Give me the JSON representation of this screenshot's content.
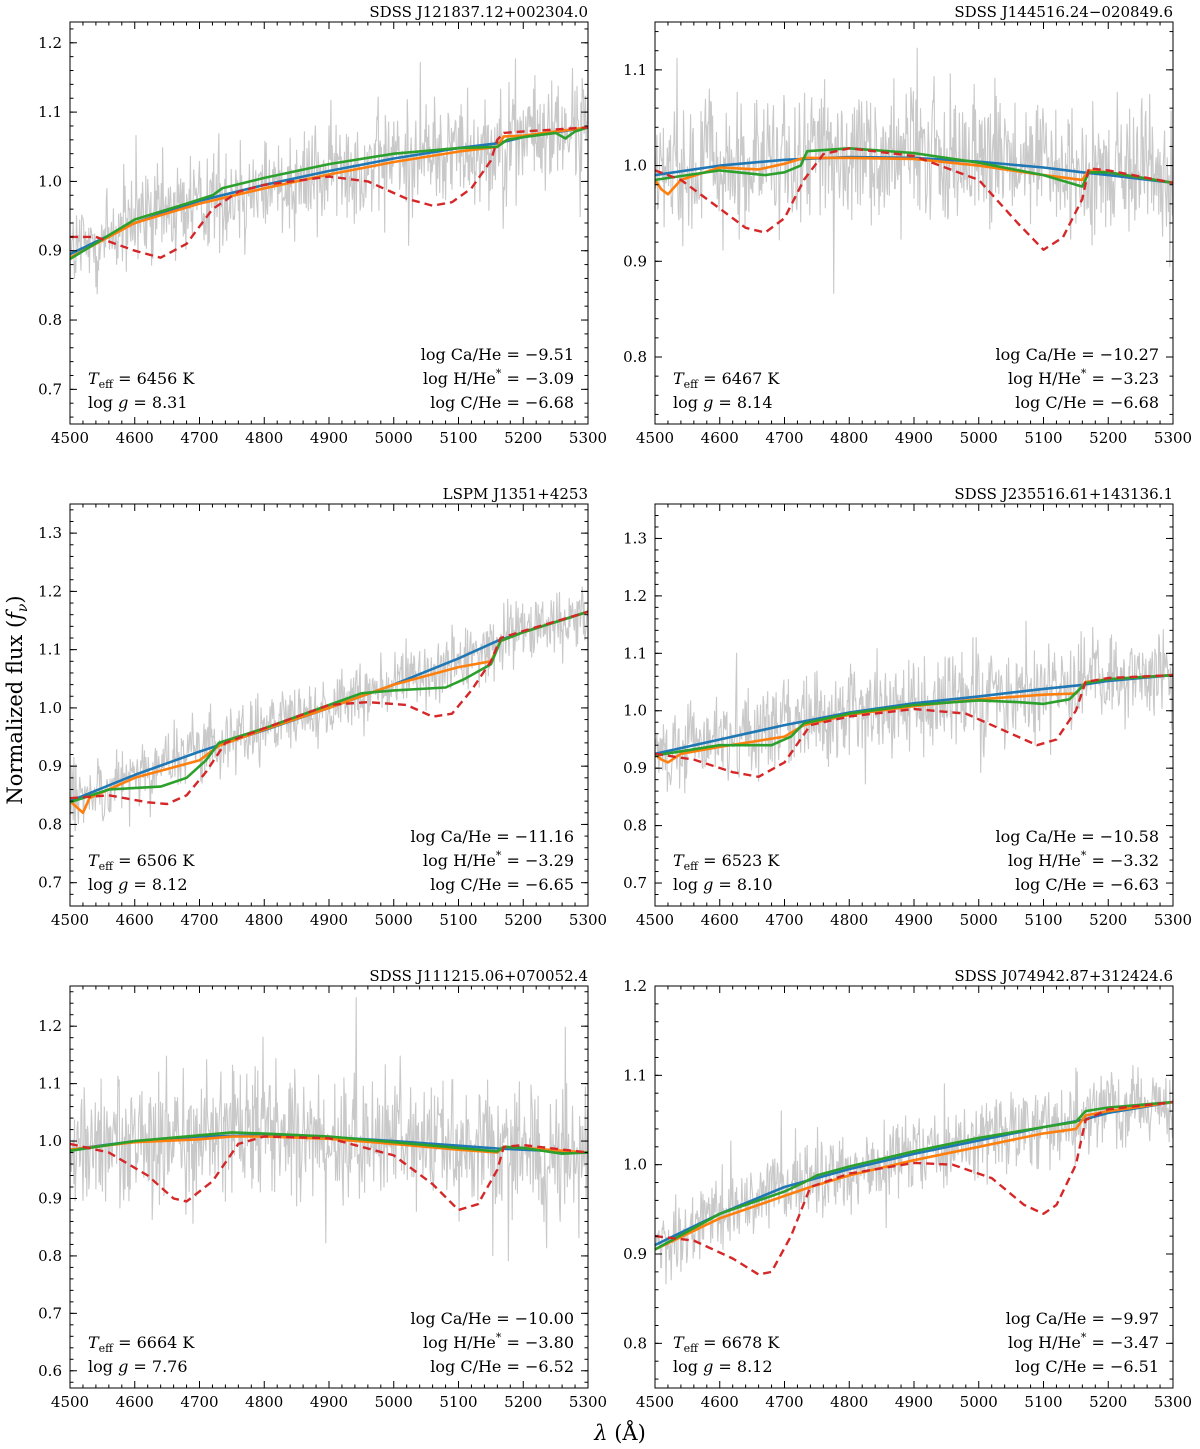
{
  "figure": {
    "ylabel": "Normalized flux (fν)",
    "xlabel": "λ (Å)",
    "series_colors": {
      "observed": "#c9c9c9",
      "model_blue": "#1f77b4",
      "model_orange": "#ff7f0e",
      "model_green": "#2ca02c",
      "model_red_dashed": "#d62728"
    }
  },
  "chart_data": [
    {
      "type": "line",
      "title": "SDSS J121837.12+002304.0",
      "xlim": [
        4500,
        5300
      ],
      "ylim": [
        0.65,
        1.23
      ],
      "xticks": [
        4500,
        4600,
        4700,
        4800,
        4900,
        5000,
        5100,
        5200,
        5300
      ],
      "yticks": [
        0.7,
        0.8,
        0.9,
        1.0,
        1.1,
        1.2
      ],
      "ytick_labels": [
        "0.7",
        "0.8",
        "0.9",
        "1.0",
        "1.1",
        "1.2"
      ],
      "annotations": {
        "teff": "T_eff = 6456 K",
        "logg": "log g = 8.31",
        "ca": "log Ca/He = −9.51",
        "h": "log H/He* = −3.09",
        "c": "log C/He = −6.68"
      },
      "observed_noise": 0.07,
      "series": [
        {
          "key": "blue",
          "x": [
            4500,
            4600,
            4700,
            4800,
            4900,
            5000,
            5100,
            5160,
            5200,
            5300
          ],
          "y": [
            0.895,
            0.94,
            0.972,
            0.995,
            1.015,
            1.033,
            1.048,
            1.055,
            1.064,
            1.078
          ]
        },
        {
          "key": "orange",
          "x": [
            4500,
            4600,
            4700,
            4800,
            4900,
            5000,
            5100,
            5160,
            5170,
            5200,
            5300
          ],
          "y": [
            0.89,
            0.94,
            0.968,
            0.99,
            1.01,
            1.028,
            1.043,
            1.05,
            1.065,
            1.066,
            1.078
          ]
        },
        {
          "key": "green",
          "x": [
            4500,
            4600,
            4680,
            4720,
            4735,
            4800,
            4900,
            5000,
            5100,
            5160,
            5175,
            5200,
            5250,
            5265,
            5280,
            5300
          ],
          "y": [
            0.888,
            0.945,
            0.968,
            0.98,
            0.99,
            1.005,
            1.025,
            1.04,
            1.048,
            1.05,
            1.06,
            1.064,
            1.07,
            1.062,
            1.072,
            1.078
          ]
        },
        {
          "key": "red",
          "x": [
            4500,
            4540,
            4600,
            4640,
            4680,
            4720,
            4760,
            4800,
            4900,
            4960,
            5020,
            5060,
            5090,
            5120,
            5150,
            5160,
            5170,
            5200,
            5300
          ],
          "y": [
            0.92,
            0.92,
            0.9,
            0.89,
            0.91,
            0.96,
            0.985,
            0.995,
            1.007,
            1.0,
            0.975,
            0.965,
            0.97,
            0.99,
            1.03,
            1.06,
            1.07,
            1.072,
            1.078
          ]
        }
      ]
    },
    {
      "type": "line",
      "title": "SDSS J144516.24−020849.6",
      "xlim": [
        4500,
        5300
      ],
      "ylim": [
        0.73,
        1.15
      ],
      "xticks": [
        4500,
        4600,
        4700,
        4800,
        4900,
        5000,
        5100,
        5200,
        5300
      ],
      "yticks": [
        0.8,
        0.9,
        1.0,
        1.1
      ],
      "ytick_labels": [
        "0.8",
        "0.9",
        "1.0",
        "1.1"
      ],
      "annotations": {
        "teff": "T_eff = 6467 K",
        "logg": "log g = 8.14",
        "ca": "log Ca/He = −10.27",
        "h": "log H/He* = −3.23",
        "c": "log C/He = −6.68"
      },
      "observed_noise": 0.06,
      "series": [
        {
          "key": "blue",
          "x": [
            4500,
            4600,
            4700,
            4800,
            4900,
            5000,
            5100,
            5160,
            5200,
            5300
          ],
          "y": [
            0.99,
            1.0,
            1.006,
            1.009,
            1.008,
            1.004,
            0.998,
            0.993,
            0.99,
            0.982
          ]
        },
        {
          "key": "orange",
          "x": [
            4500,
            4510,
            4520,
            4540,
            4600,
            4660,
            4700,
            4730,
            4800,
            4900,
            5000,
            5100,
            5160,
            5170,
            5200,
            5300
          ],
          "y": [
            0.985,
            0.975,
            0.97,
            0.985,
            0.998,
            0.996,
            1.002,
            1.008,
            1.008,
            1.007,
            1.0,
            0.99,
            0.985,
            0.995,
            0.993,
            0.982
          ]
        },
        {
          "key": "green",
          "x": [
            4500,
            4600,
            4670,
            4700,
            4725,
            4735,
            4800,
            4900,
            5000,
            5100,
            5150,
            5160,
            5170,
            5200,
            5300
          ],
          "y": [
            0.985,
            0.995,
            0.99,
            0.993,
            1.0,
            1.015,
            1.018,
            1.013,
            1.003,
            0.99,
            0.98,
            0.978,
            0.993,
            0.993,
            0.982
          ]
        },
        {
          "key": "red",
          "x": [
            4500,
            4540,
            4600,
            4640,
            4670,
            4700,
            4730,
            4760,
            4800,
            4900,
            5000,
            5060,
            5100,
            5130,
            5160,
            5170,
            5200,
            5300
          ],
          "y": [
            0.995,
            0.985,
            0.955,
            0.935,
            0.93,
            0.945,
            0.985,
            1.012,
            1.018,
            1.01,
            0.985,
            0.94,
            0.912,
            0.925,
            0.965,
            0.997,
            0.995,
            0.982
          ]
        }
      ]
    },
    {
      "type": "line",
      "title": "LSPM J1351+4253",
      "xlim": [
        4500,
        5300
      ],
      "ylim": [
        0.66,
        1.35
      ],
      "xticks": [
        4500,
        4600,
        4700,
        4800,
        4900,
        5000,
        5100,
        5200,
        5300
      ],
      "yticks": [
        0.7,
        0.8,
        0.9,
        1.0,
        1.1,
        1.2,
        1.3
      ],
      "ytick_labels": [
        "0.7",
        "0.8",
        "0.9",
        "1.0",
        "1.1",
        "1.2",
        "1.3"
      ],
      "annotations": {
        "teff": "T_eff = 6506 K",
        "logg": "log g = 8.12",
        "ca": "log Ca/He = −11.16",
        "h": "log H/He* = −3.29",
        "c": "log C/He = −6.65"
      },
      "observed_noise": 0.05,
      "series": [
        {
          "key": "blue",
          "x": [
            4500,
            4600,
            4700,
            4800,
            4900,
            5000,
            5100,
            5160,
            5200,
            5300
          ],
          "y": [
            0.84,
            0.885,
            0.925,
            0.962,
            1.0,
            1.04,
            1.085,
            1.115,
            1.13,
            1.165
          ]
        },
        {
          "key": "orange",
          "x": [
            4500,
            4510,
            4520,
            4530,
            4600,
            4700,
            4730,
            4800,
            4900,
            5000,
            5100,
            5150,
            5165,
            5200,
            5300
          ],
          "y": [
            0.84,
            0.83,
            0.82,
            0.845,
            0.88,
            0.91,
            0.935,
            0.963,
            1.0,
            1.04,
            1.07,
            1.08,
            1.115,
            1.13,
            1.165
          ]
        },
        {
          "key": "green",
          "x": [
            4500,
            4560,
            4640,
            4680,
            4710,
            4730,
            4800,
            4900,
            4950,
            5000,
            5080,
            5110,
            5150,
            5165,
            5200,
            5300
          ],
          "y": [
            0.838,
            0.86,
            0.865,
            0.88,
            0.91,
            0.94,
            0.965,
            1.005,
            1.025,
            1.03,
            1.035,
            1.05,
            1.075,
            1.115,
            1.13,
            1.165
          ]
        },
        {
          "key": "red",
          "x": [
            4500,
            4560,
            4620,
            4650,
            4680,
            4710,
            4740,
            4800,
            4900,
            4960,
            5020,
            5060,
            5090,
            5120,
            5150,
            5165,
            5200,
            5300
          ],
          "y": [
            0.845,
            0.85,
            0.838,
            0.835,
            0.85,
            0.89,
            0.94,
            0.965,
            1.005,
            1.01,
            1.005,
            0.985,
            0.99,
            1.03,
            1.08,
            1.12,
            1.132,
            1.165
          ]
        }
      ]
    },
    {
      "type": "line",
      "title": "SDSS J235516.61+143136.1",
      "xlim": [
        4500,
        5300
      ],
      "ylim": [
        0.66,
        1.36
      ],
      "xticks": [
        4500,
        4600,
        4700,
        4800,
        4900,
        5000,
        5100,
        5200,
        5300
      ],
      "yticks": [
        0.7,
        0.8,
        0.9,
        1.0,
        1.1,
        1.2,
        1.3
      ],
      "ytick_labels": [
        "0.7",
        "0.8",
        "0.9",
        "1.0",
        "1.1",
        "1.2",
        "1.3"
      ],
      "annotations": {
        "teff": "T_eff = 6523 K",
        "logg": "log g = 8.10",
        "ca": "log Ca/He = −10.58",
        "h": "log H/He* = −3.32",
        "c": "log C/He = −6.63"
      },
      "observed_noise": 0.07,
      "series": [
        {
          "key": "blue",
          "x": [
            4500,
            4600,
            4700,
            4800,
            4900,
            5000,
            5100,
            5160,
            5200,
            5300
          ],
          "y": [
            0.925,
            0.95,
            0.975,
            0.997,
            1.013,
            1.025,
            1.038,
            1.045,
            1.052,
            1.062
          ]
        },
        {
          "key": "orange",
          "x": [
            4500,
            4510,
            4520,
            4540,
            4600,
            4700,
            4730,
            4800,
            4900,
            5000,
            5100,
            5150,
            5165,
            5200,
            5300
          ],
          "y": [
            0.925,
            0.915,
            0.91,
            0.925,
            0.937,
            0.955,
            0.975,
            0.993,
            1.008,
            1.02,
            1.028,
            1.03,
            1.05,
            1.055,
            1.062
          ]
        },
        {
          "key": "green",
          "x": [
            4500,
            4600,
            4680,
            4710,
            4730,
            4800,
            4900,
            5000,
            5060,
            5100,
            5140,
            5165,
            5200,
            5300
          ],
          "y": [
            0.922,
            0.94,
            0.94,
            0.955,
            0.978,
            0.995,
            1.01,
            1.018,
            1.015,
            1.012,
            1.02,
            1.048,
            1.055,
            1.062
          ]
        },
        {
          "key": "red",
          "x": [
            4500,
            4560,
            4620,
            4660,
            4700,
            4740,
            4800,
            4900,
            4980,
            5040,
            5090,
            5120,
            5150,
            5165,
            5200,
            5300
          ],
          "y": [
            0.925,
            0.915,
            0.893,
            0.885,
            0.91,
            0.975,
            0.99,
            1.003,
            0.995,
            0.965,
            0.94,
            0.95,
            1.0,
            1.05,
            1.057,
            1.062
          ]
        }
      ]
    },
    {
      "type": "line",
      "title": "SDSS J111215.06+070052.4",
      "xlim": [
        4500,
        5300
      ],
      "ylim": [
        0.57,
        1.27
      ],
      "xticks": [
        4500,
        4600,
        4700,
        4800,
        4900,
        5000,
        5100,
        5200,
        5300
      ],
      "yticks": [
        0.6,
        0.7,
        0.8,
        0.9,
        1.0,
        1.1,
        1.2
      ],
      "ytick_labels": [
        "0.6",
        "0.7",
        "0.8",
        "0.9",
        "1.0",
        "1.1",
        "1.2"
      ],
      "annotations": {
        "teff": "T_eff = 6664 K",
        "logg": "log g = 7.76",
        "ca": "log Ca/He = −10.00",
        "h": "log H/He* = −3.80",
        "c": "log C/He = −6.52"
      },
      "observed_noise": 0.1,
      "series": [
        {
          "key": "blue",
          "x": [
            4500,
            4600,
            4700,
            4800,
            4900,
            5000,
            5100,
            5160,
            5200,
            5300
          ],
          "y": [
            0.985,
            1.0,
            1.008,
            1.01,
            1.007,
            1.0,
            0.992,
            0.987,
            0.985,
            0.98
          ]
        },
        {
          "key": "orange",
          "x": [
            4500,
            4600,
            4700,
            4750,
            4800,
            4900,
            5000,
            5100,
            5160,
            5170,
            5200,
            5300
          ],
          "y": [
            0.985,
            0.998,
            1.003,
            1.008,
            1.008,
            1.004,
            0.995,
            0.985,
            0.98,
            0.99,
            0.988,
            0.98
          ]
        },
        {
          "key": "green",
          "x": [
            4500,
            4600,
            4700,
            4750,
            4800,
            4900,
            5000,
            5100,
            5160,
            5170,
            5200,
            5260,
            5300
          ],
          "y": [
            0.983,
            1.0,
            1.01,
            1.015,
            1.013,
            1.008,
            0.998,
            0.988,
            0.982,
            0.99,
            0.988,
            0.978,
            0.98
          ]
        },
        {
          "key": "red",
          "x": [
            4500,
            4560,
            4620,
            4660,
            4680,
            4720,
            4760,
            4800,
            4900,
            5000,
            5060,
            5100,
            5130,
            5160,
            5170,
            5200,
            5300
          ],
          "y": [
            0.995,
            0.98,
            0.94,
            0.9,
            0.895,
            0.93,
            0.995,
            1.008,
            1.005,
            0.975,
            0.925,
            0.88,
            0.89,
            0.95,
            0.99,
            0.993,
            0.98
          ]
        }
      ]
    },
    {
      "type": "line",
      "title": "SDSS J074942.87+312424.6",
      "xlim": [
        4500,
        5300
      ],
      "ylim": [
        0.75,
        1.2
      ],
      "xticks": [
        4500,
        4600,
        4700,
        4800,
        4900,
        5000,
        5100,
        5200,
        5300
      ],
      "yticks": [
        0.8,
        0.9,
        1.0,
        1.1,
        1.2
      ],
      "ytick_labels": [
        "0.8",
        "0.9",
        "1.0",
        "1.1",
        "1.2"
      ],
      "annotations": {
        "teff": "T_eff = 6678 K",
        "logg": "log g = 8.12",
        "ca": "log Ca/He = −9.97",
        "h": "log H/He* = −3.47",
        "c": "log C/He = −6.51"
      },
      "observed_noise": 0.04,
      "series": [
        {
          "key": "blue",
          "x": [
            4500,
            4600,
            4700,
            4800,
            4900,
            5000,
            5100,
            5160,
            5200,
            5300
          ],
          "y": [
            0.91,
            0.945,
            0.975,
            0.995,
            1.012,
            1.027,
            1.042,
            1.05,
            1.058,
            1.07
          ]
        },
        {
          "key": "orange",
          "x": [
            4500,
            4600,
            4700,
            4740,
            4800,
            4900,
            5000,
            5100,
            5150,
            5165,
            5200,
            5300
          ],
          "y": [
            0.905,
            0.94,
            0.965,
            0.975,
            0.988,
            1.005,
            1.02,
            1.035,
            1.04,
            1.055,
            1.06,
            1.07
          ]
        },
        {
          "key": "green",
          "x": [
            4500,
            4600,
            4700,
            4730,
            4750,
            4800,
            4900,
            5000,
            5100,
            5150,
            5165,
            5200,
            5300
          ],
          "y": [
            0.905,
            0.945,
            0.97,
            0.98,
            0.988,
            0.998,
            1.015,
            1.03,
            1.042,
            1.048,
            1.06,
            1.064,
            1.07
          ]
        },
        {
          "key": "red",
          "x": [
            4500,
            4560,
            4620,
            4660,
            4680,
            4710,
            4740,
            4800,
            4900,
            4960,
            5020,
            5070,
            5100,
            5120,
            5150,
            5165,
            5200,
            5300
          ],
          "y": [
            0.92,
            0.915,
            0.895,
            0.877,
            0.88,
            0.92,
            0.975,
            0.99,
            1.002,
            1.0,
            0.985,
            0.955,
            0.945,
            0.955,
            1.0,
            1.05,
            1.062,
            1.07
          ]
        }
      ]
    }
  ]
}
